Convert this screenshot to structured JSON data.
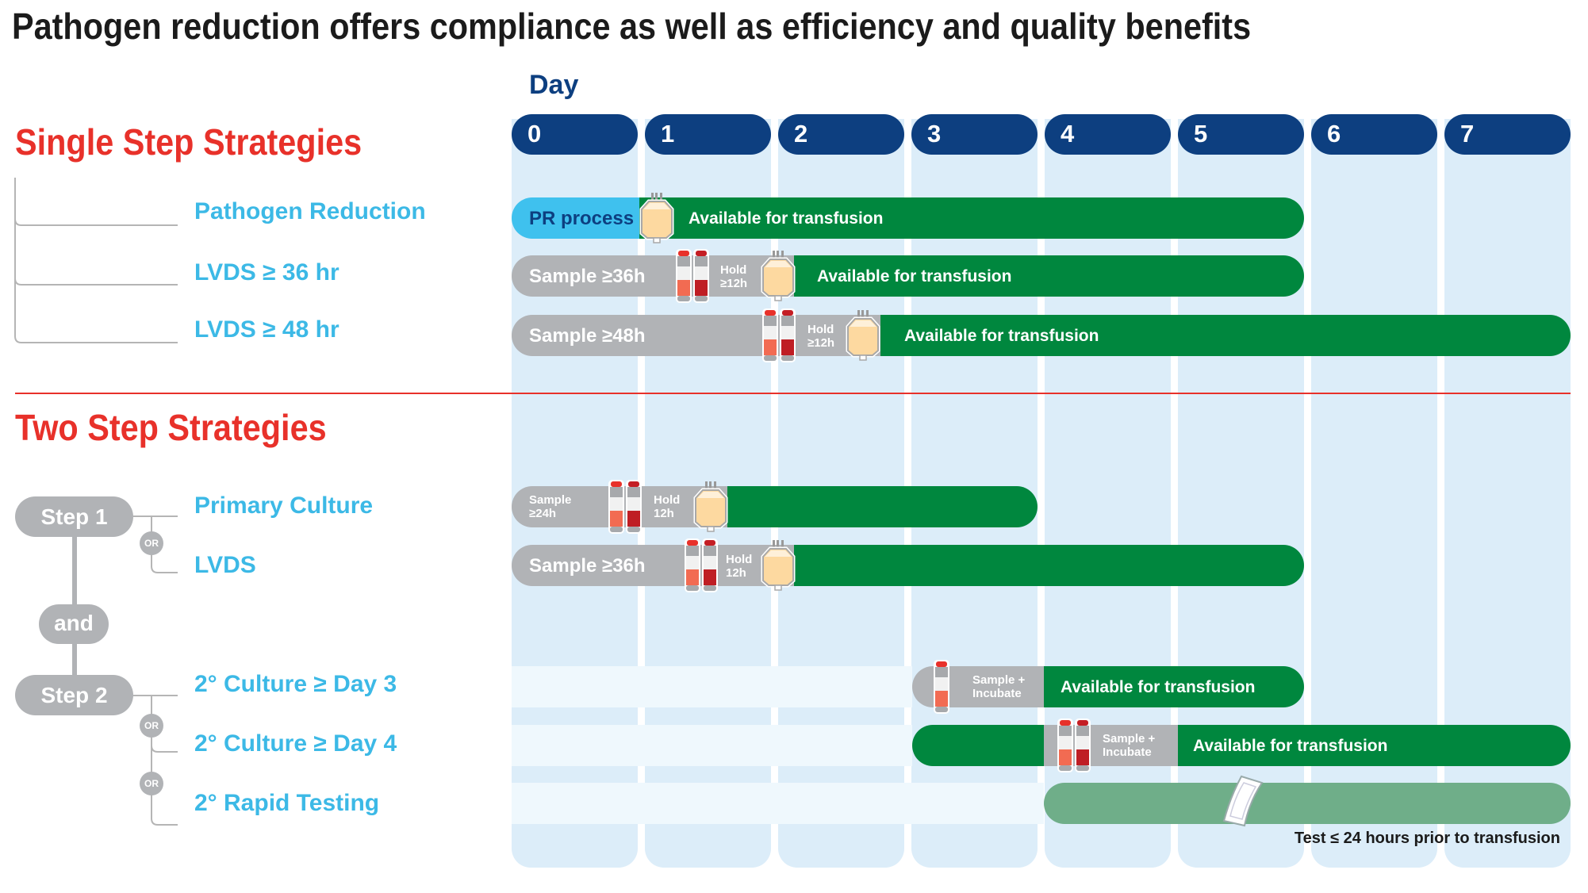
{
  "title": "Pathogen reduction offers compliance as well as efficiency and quality benefits",
  "day_label": "Day",
  "days": [
    "0",
    "1",
    "2",
    "3",
    "4",
    "5",
    "6",
    "7"
  ],
  "single": {
    "heading": "Single Step Strategies",
    "items": [
      "Pathogen Reduction",
      "LVDS ≥ 36 hr",
      "LVDS ≥ 48 hr"
    ]
  },
  "two": {
    "heading": "Two Step Strategies",
    "step1": "Step 1",
    "and": "and",
    "step2": "Step 2",
    "or": "OR",
    "step1_items": [
      "Primary Culture",
      "LVDS"
    ],
    "step2_items": [
      "2° Culture ≥ Day 3",
      "2° Culture ≥ Day 4",
      "2° Rapid Testing"
    ]
  },
  "bars": {
    "pr_process": "PR process",
    "available": "Available for transfusion",
    "sample36": "Sample ≥36h",
    "sample48": "Sample ≥48h",
    "hold12_ge": [
      "Hold",
      "≥12h"
    ],
    "sample24": [
      "Sample",
      "≥24h"
    ],
    "hold12": [
      "Hold",
      "12h"
    ],
    "sample_incubate": [
      "Sample +",
      "Incubate"
    ],
    "rapid_note": "Test ≤ 24 hours prior to transfusion"
  },
  "colors": {
    "green": "#00873e",
    "gray": "#b1b3b6",
    "pr_blue": "#3fc1ee",
    "navy": "#0d3f80",
    "red": "#e8312a",
    "label": "#3cb9e6",
    "rapid": "#6fae89"
  },
  "icons": [
    "platelet-bag-icon",
    "blood-culture-vial-icon",
    "rapid-test-strip-icon"
  ]
}
